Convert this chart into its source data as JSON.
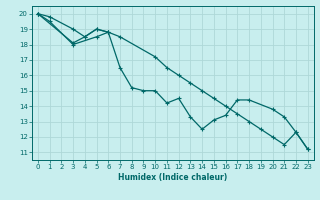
{
  "xlabel": "Humidex (Indice chaleur)",
  "bg_color": "#c8eeee",
  "grid_color": "#aed8d8",
  "line_color": "#006868",
  "xlim": [
    -0.5,
    23.5
  ],
  "ylim": [
    10.5,
    20.5
  ],
  "xticks": [
    0,
    1,
    2,
    3,
    4,
    5,
    6,
    7,
    8,
    9,
    10,
    11,
    12,
    13,
    14,
    15,
    16,
    17,
    18,
    19,
    20,
    21,
    22,
    23
  ],
  "yticks": [
    11,
    12,
    13,
    14,
    15,
    16,
    17,
    18,
    19,
    20
  ],
  "line1": {
    "x": [
      0,
      1,
      3,
      5,
      6,
      7,
      10,
      11,
      12,
      13,
      14,
      15,
      16,
      17,
      18,
      19,
      20,
      21,
      22,
      23
    ],
    "y": [
      20,
      19.5,
      18.0,
      18.5,
      18.8,
      18.5,
      17.2,
      16.5,
      16.0,
      15.5,
      15.0,
      14.5,
      14.0,
      13.5,
      13.0,
      12.5,
      12.0,
      11.5,
      12.3,
      11.2
    ]
  },
  "line2": {
    "x": [
      0,
      3,
      4,
      5,
      6,
      7,
      8,
      9,
      10,
      11,
      12,
      13,
      14,
      15,
      16,
      17,
      18,
      20,
      21,
      22,
      23
    ],
    "y": [
      20,
      18.1,
      18.5,
      19.0,
      18.8,
      16.5,
      15.2,
      15.0,
      15.0,
      14.2,
      14.5,
      13.3,
      12.5,
      13.1,
      13.4,
      14.4,
      14.4,
      13.8,
      13.3,
      12.3,
      11.2
    ]
  },
  "line3": {
    "x": [
      0,
      1,
      3,
      4,
      5,
      6
    ],
    "y": [
      20,
      19.8,
      19.0,
      18.5,
      19.0,
      18.8
    ]
  }
}
